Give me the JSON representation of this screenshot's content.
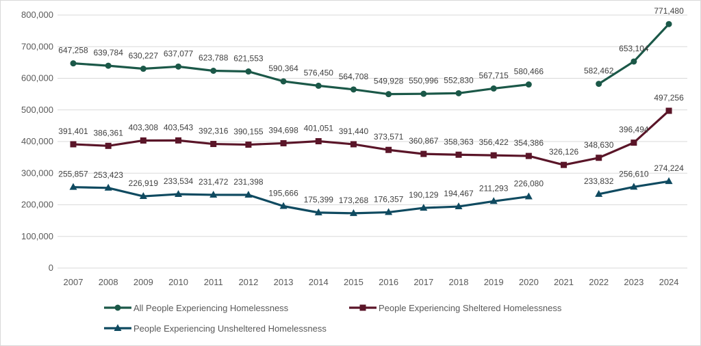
{
  "chart_data": {
    "type": "line",
    "title": "",
    "xlabel": "",
    "ylabel": "",
    "ylim": [
      0,
      800000
    ],
    "yticks": [
      "0",
      "100,000",
      "200,000",
      "300,000",
      "400,000",
      "500,000",
      "600,000",
      "700,000",
      "800,000"
    ],
    "categories": [
      "2007",
      "2008",
      "2009",
      "2010",
      "2011",
      "2012",
      "2013",
      "2014",
      "2015",
      "2016",
      "2017",
      "2018",
      "2019",
      "2020",
      "2021",
      "2022",
      "2023",
      "2024"
    ],
    "grid": true,
    "legend_position": "bottom",
    "series": [
      {
        "name": "All People Experiencing Homelessness",
        "color": "#1b5848",
        "marker": "circle",
        "values": [
          647258,
          639784,
          630227,
          637077,
          623788,
          621553,
          590364,
          576450,
          564708,
          549928,
          550996,
          552830,
          567715,
          580466,
          null,
          582462,
          653104,
          771480
        ]
      },
      {
        "name": "People Experiencing Sheltered Homelessness",
        "color": "#5a1528",
        "marker": "square",
        "values": [
          391401,
          386361,
          403308,
          403543,
          392316,
          390155,
          394698,
          401051,
          391440,
          373571,
          360867,
          358363,
          356422,
          354386,
          326126,
          348630,
          396494,
          497256
        ]
      },
      {
        "name": "People Experiencing Unsheltered Homelessness",
        "color": "#0f4a60",
        "marker": "triangle",
        "values": [
          255857,
          253423,
          226919,
          233534,
          231472,
          231398,
          195666,
          175399,
          173268,
          176357,
          190129,
          194467,
          211293,
          226080,
          null,
          233832,
          256610,
          274224
        ]
      }
    ]
  }
}
